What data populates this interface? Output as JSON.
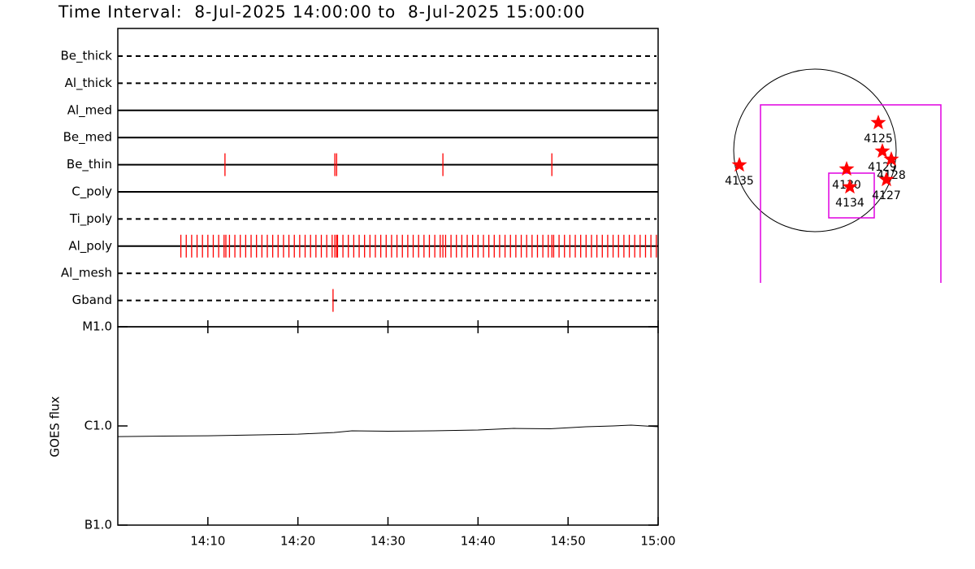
{
  "title": "Time Interval:  8-Jul-2025 14:00:00 to  8-Jul-2025 15:00:00",
  "chart_data": [
    {
      "type": "timeline",
      "categories": [
        "Be_thick",
        "Al_thick",
        "Al_med",
        "Be_med",
        "Be_thin",
        "C_poly",
        "Ti_poly",
        "Al_poly",
        "Al_mesh",
        "Gband"
      ],
      "line_styles": [
        "dashed",
        "dashed",
        "solid",
        "solid",
        "solid",
        "solid",
        "dashed",
        "solid",
        "dashed",
        "dashed"
      ],
      "events": [
        [],
        [],
        [],
        [],
        [
          11.9,
          24.1,
          24.3,
          36.1,
          48.2
        ],
        [],
        [],
        [
          7.0,
          7.6,
          8.2,
          8.8,
          9.4,
          10.0,
          10.6,
          11.2,
          11.8,
          12.0,
          12.4,
          13.0,
          13.6,
          14.2,
          14.8,
          15.4,
          16.0,
          16.6,
          17.2,
          17.8,
          18.4,
          19.0,
          19.6,
          20.2,
          20.8,
          21.4,
          22.0,
          22.6,
          23.2,
          23.8,
          24.1,
          24.3,
          24.4,
          25.0,
          25.6,
          26.2,
          26.8,
          27.4,
          28.0,
          28.6,
          29.2,
          29.8,
          30.4,
          31.0,
          31.6,
          32.2,
          32.8,
          33.4,
          34.0,
          34.6,
          35.2,
          35.8,
          36.1,
          36.4,
          37.0,
          37.6,
          38.2,
          38.8,
          39.4,
          40.0,
          40.6,
          41.2,
          41.8,
          42.4,
          43.0,
          43.6,
          44.2,
          44.8,
          45.4,
          46.0,
          46.6,
          47.2,
          47.8,
          48.2,
          48.4,
          49.0,
          49.6,
          50.2,
          50.8,
          51.4,
          52.0,
          52.6,
          53.2,
          53.8,
          54.4,
          55.0,
          55.6,
          56.2,
          56.8,
          57.4,
          58.0,
          58.6,
          59.2,
          59.8
        ],
        [],
        [
          23.9
        ]
      ],
      "color": "#ff0000",
      "xlim": [
        0,
        60
      ]
    },
    {
      "type": "line",
      "y_label": "GOES flux",
      "x": [
        0,
        5,
        10,
        15,
        20,
        24,
        26,
        30,
        35,
        40,
        44,
        48,
        52,
        55,
        57,
        60
      ],
      "values": [
        7.8e-07,
        7.9e-07,
        7.95e-07,
        8.1e-07,
        8.26e-07,
        8.58e-07,
        8.92e-07,
        8.85e-07,
        8.92e-07,
        9.09e-07,
        9.44e-07,
        9.35e-07,
        9.81e-07,
        1e-06,
        1.02e-06,
        9.81e-07
      ],
      "color": "#000000",
      "log_scale": true,
      "xlim": [
        0,
        60
      ],
      "xticks": [
        {
          "value": 10,
          "label": "14:10"
        },
        {
          "value": 20,
          "label": "14:20"
        },
        {
          "value": 30,
          "label": "14:30"
        },
        {
          "value": 40,
          "label": "14:40"
        },
        {
          "value": 50,
          "label": "14:50"
        },
        {
          "value": 60,
          "label": "15:00"
        }
      ],
      "ylim": [
        1e-07,
        1e-05
      ],
      "yticks": [
        {
          "value": 1e-07,
          "label": "B1.0"
        },
        {
          "value": 1e-06,
          "label": "C1.0"
        },
        {
          "value": 1e-05,
          "label": "M1.0"
        }
      ]
    }
  ],
  "map": {
    "regions": [
      {
        "label": "4125"
      },
      {
        "label": "4129"
      },
      {
        "label": "4128"
      },
      {
        "label": "4130"
      },
      {
        "label": "4134"
      },
      {
        "label": "4127"
      },
      {
        "label": "4135"
      }
    ]
  }
}
